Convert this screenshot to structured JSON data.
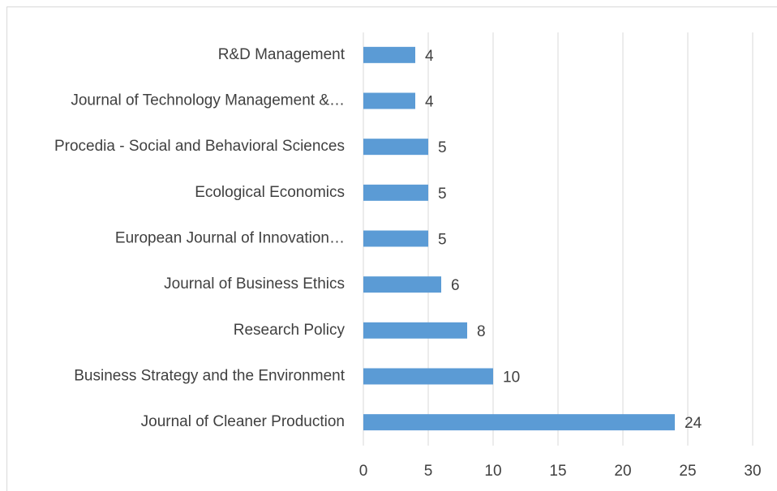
{
  "chart_data": {
    "type": "bar",
    "orientation": "horizontal",
    "categories": [
      "R&D Management",
      "Journal of Technology Management &…",
      "Procedia - Social and Behavioral Sciences",
      "Ecological Economics",
      "European Journal of Innovation…",
      "Journal of Business Ethics",
      "Research Policy",
      "Business Strategy and the Environment",
      "Journal of Cleaner Production"
    ],
    "values": [
      4,
      4,
      5,
      5,
      5,
      6,
      8,
      10,
      24
    ],
    "color": "#5b9bd5",
    "xlim": [
      0,
      30
    ],
    "xticks": [
      0,
      5,
      10,
      15,
      20,
      25,
      30
    ],
    "grid": true
  }
}
